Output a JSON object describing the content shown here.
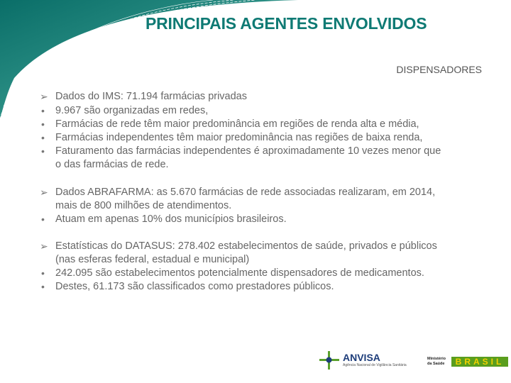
{
  "title": "PRINCIPAIS AGENTES ENVOLVIDOS",
  "subtitle": "DISPENSADORES",
  "colors": {
    "accent": "#0f7a74",
    "text": "#666666"
  },
  "sections": [
    {
      "lines": [
        {
          "marker": "arrow",
          "text": "Dados do IMS: 71.194 farmácias privadas"
        },
        {
          "marker": "bullet",
          "text": "9.967 são organizadas em redes,"
        },
        {
          "marker": "bullet",
          "text": "Farmácias de rede têm maior predominância em regiões de renda alta e média,"
        },
        {
          "marker": "bullet",
          "text": "Farmácias independentes têm maior predominância nas regiões de baixa renda,"
        },
        {
          "marker": "bullet",
          "text": "Faturamento das farmácias independentes é aproximadamente 10 vezes menor que"
        },
        {
          "marker": "none",
          "text": "o das farmácias de rede."
        }
      ]
    },
    {
      "lines": [
        {
          "marker": "arrow",
          "text": "Dados ABRAFARMA: as 5.670 farmácias de rede associadas realizaram, em 2014,"
        },
        {
          "marker": "none",
          "text": "mais de 800 milhões de atendimentos."
        },
        {
          "marker": "bullet",
          "text": "Atuam em apenas 10% dos municípios brasileiros."
        }
      ]
    },
    {
      "lines": [
        {
          "marker": "arrow",
          "text": "Estatísticas do DATASUS: 278.402 estabelecimentos de saúde, privados e públicos"
        },
        {
          "marker": "none",
          "text": "(nas esferas federal, estadual e municipal)"
        },
        {
          "marker": "bullet",
          "text": "242.095 são estabelecimentos potencialmente dispensadores de medicamentos."
        },
        {
          "marker": "bullet",
          "text": "Destes, 61.173 são classificados como prestadores públicos."
        }
      ]
    }
  ],
  "logos": {
    "anvisa": "ANVISA",
    "anvisa_sub": "Agência Nacional de Vigilância Sanitária",
    "ministerio": "Ministério da Saúde",
    "brasil": "BRASIL"
  },
  "icons": {
    "arrow": "arrow-bullet-icon",
    "bullet": "dot-bullet-icon"
  }
}
